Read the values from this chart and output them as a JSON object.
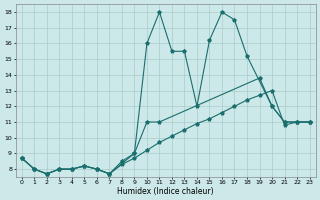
{
  "xlabel": "Humidex (Indice chaleur)",
  "xlim": [
    -0.5,
    23.5
  ],
  "ylim": [
    7.5,
    18.5
  ],
  "yticks": [
    8,
    9,
    10,
    11,
    12,
    13,
    14,
    15,
    16,
    17,
    18
  ],
  "xticks": [
    0,
    1,
    2,
    3,
    4,
    5,
    6,
    7,
    8,
    9,
    10,
    11,
    12,
    13,
    14,
    15,
    16,
    17,
    18,
    19,
    20,
    21,
    22,
    23
  ],
  "bg_color": "#cce8e8",
  "grid_color": "#aacccc",
  "line_color": "#1a6e6e",
  "line1_x": [
    0,
    1,
    2,
    3,
    4,
    5,
    6,
    7,
    9,
    10,
    11,
    12,
    13,
    14,
    15,
    16,
    17,
    18,
    20,
    21,
    22,
    23
  ],
  "line1_y": [
    8.7,
    8.0,
    7.7,
    8.0,
    8.0,
    8.2,
    8.0,
    7.7,
    9.0,
    16.0,
    18.0,
    15.5,
    15.5,
    12.0,
    16.2,
    18.0,
    17.5,
    15.2,
    12.0,
    11.0,
    11.0,
    11.0
  ],
  "line2_x": [
    0,
    1,
    2,
    3,
    4,
    5,
    6,
    7,
    8,
    9,
    10,
    11,
    19,
    20,
    21,
    22,
    23
  ],
  "line2_y": [
    8.7,
    8.0,
    7.7,
    8.0,
    8.0,
    8.2,
    8.0,
    7.7,
    8.5,
    9.0,
    11.0,
    11.0,
    13.8,
    12.0,
    11.0,
    11.0,
    11.0
  ],
  "line3_x": [
    0,
    1,
    2,
    3,
    4,
    5,
    6,
    7,
    8,
    9,
    10,
    11,
    12,
    13,
    14,
    15,
    16,
    17,
    18,
    19,
    20,
    21,
    22,
    23
  ],
  "line3_y": [
    8.7,
    8.0,
    7.7,
    8.0,
    8.0,
    8.2,
    8.0,
    7.7,
    8.3,
    8.7,
    9.2,
    9.7,
    10.1,
    10.5,
    10.9,
    11.2,
    11.6,
    12.0,
    12.4,
    12.7,
    13.0,
    10.8,
    11.0,
    11.0
  ]
}
